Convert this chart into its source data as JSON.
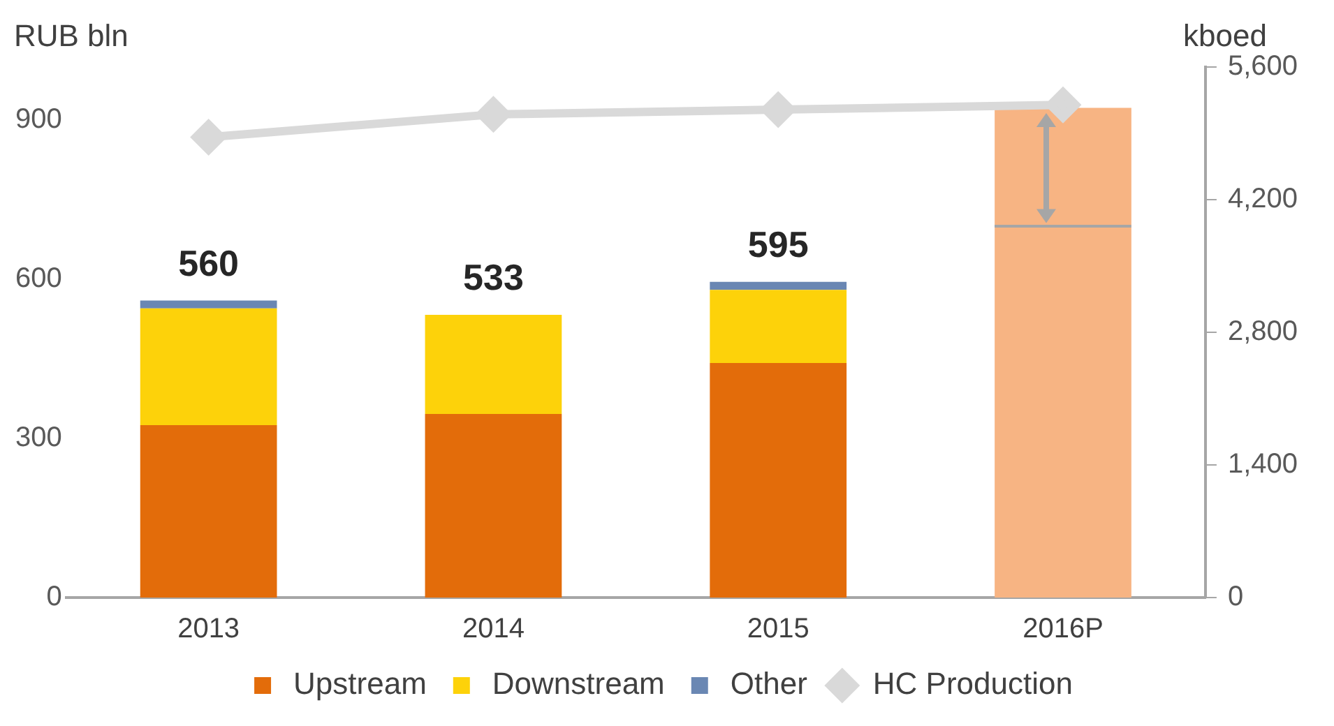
{
  "chart_data": {
    "type": "bar",
    "ylabel": "RUB bln",
    "y2label": "kboed",
    "categories": [
      "2013",
      "2014",
      "2015",
      "2016P"
    ],
    "stacked": true,
    "legend": "bottom",
    "marker": "diamond",
    "series": [
      {
        "name": "Upstream",
        "color": "#e36c0a",
        "values": [
          325,
          346,
          442,
          null
        ]
      },
      {
        "name": "Downstream",
        "color": "#fdd20a",
        "values": [
          220,
          187,
          138,
          null
        ]
      },
      {
        "name": "Other",
        "color": "#6a87b3",
        "values": [
          15,
          null,
          15,
          null
        ]
      },
      {
        "color": "#f7b483",
        "values": [
          null,
          null,
          null,
          700
        ]
      },
      {
        "color": "#f7b483",
        "values": [
          null,
          null,
          null,
          223
        ]
      },
      {
        "name": "HC Production",
        "type": "line",
        "axis": "y2",
        "color": "#d9d9d9",
        "values": [
          4860,
          5100,
          5150,
          5200
        ]
      }
    ],
    "totals": [
      "560",
      "533",
      "595",
      null
    ],
    "ylim": [
      0,
      1000
    ],
    "yticks": [
      0,
      300,
      600,
      900
    ],
    "y2lim": [
      0,
      5600
    ],
    "y2ticks": [
      0,
      {
        "value": 1400,
        "label": "1,400"
      },
      {
        "value": 2800,
        "label": "2,800"
      },
      {
        "value": 4200,
        "label": "4,200"
      },
      {
        "value": 5600,
        "label": "5,600"
      }
    ]
  }
}
